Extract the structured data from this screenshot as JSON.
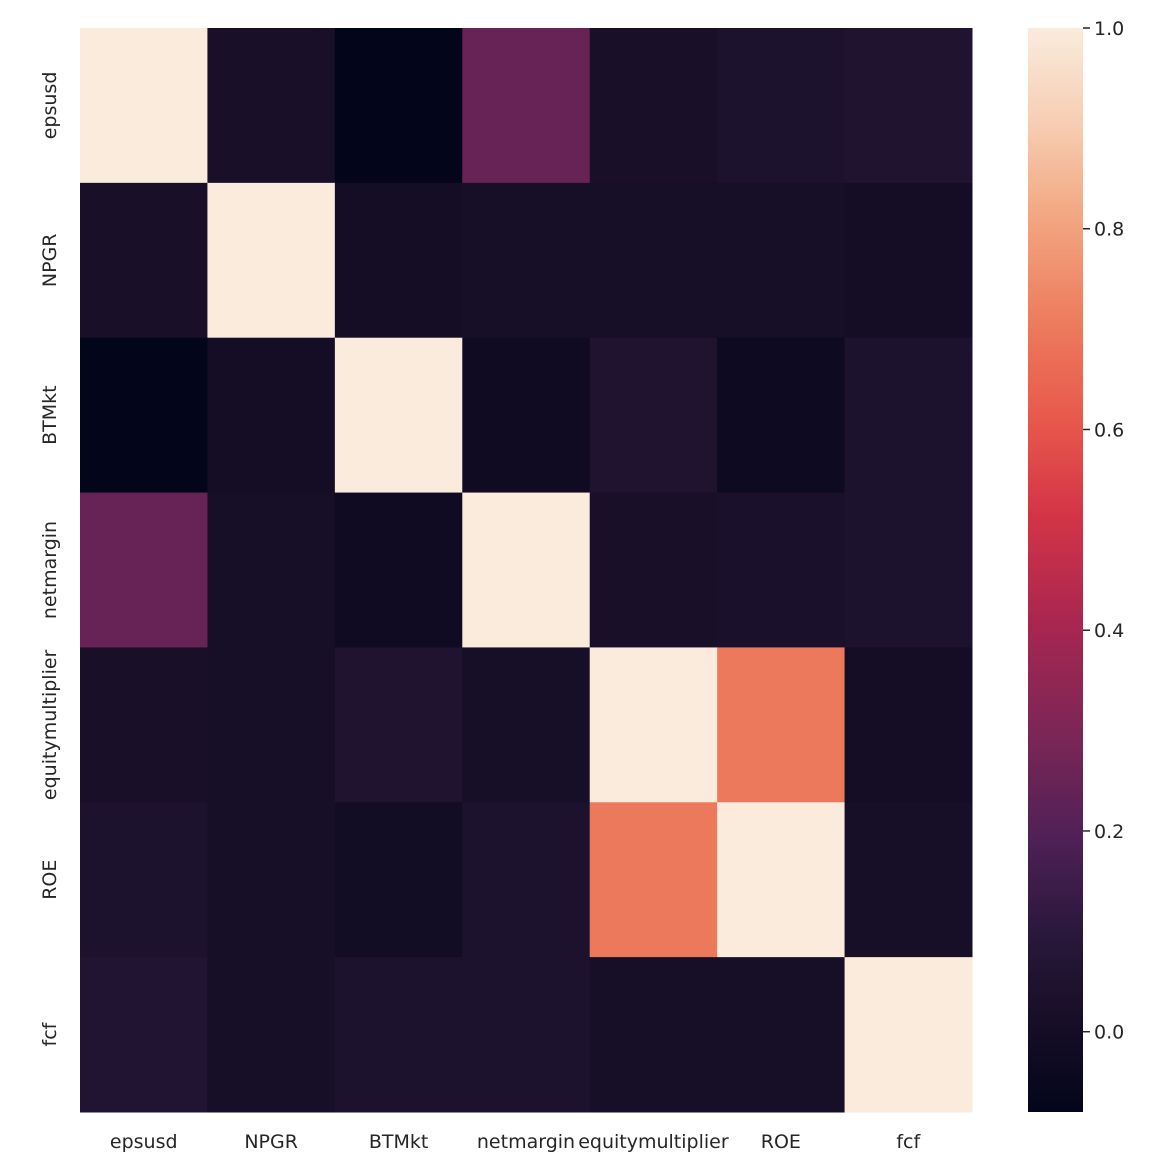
{
  "chart_data": {
    "type": "heatmap",
    "title": "",
    "xlabel": "",
    "ylabel": "",
    "x_categories": [
      "epsusd",
      "NPGR",
      "BTMkt",
      "netmargin",
      "equitymultiplier",
      "ROE",
      "fcf"
    ],
    "y_categories": [
      "epsusd",
      "NPGR",
      "BTMkt",
      "netmargin",
      "equitymultiplier",
      "ROE",
      "fcf"
    ],
    "values": [
      [
        1.0,
        0.02,
        -0.08,
        0.25,
        0.02,
        0.04,
        0.05
      ],
      [
        0.02,
        1.0,
        0.0,
        0.01,
        0.01,
        0.01,
        0.0
      ],
      [
        -0.08,
        0.0,
        1.0,
        -0.02,
        0.05,
        -0.03,
        0.04
      ],
      [
        0.25,
        0.01,
        -0.02,
        1.0,
        0.02,
        0.03,
        0.04
      ],
      [
        0.02,
        0.01,
        0.05,
        0.01,
        1.0,
        0.7,
        0.0
      ],
      [
        0.04,
        0.01,
        -0.01,
        0.04,
        0.7,
        1.0,
        0.01
      ],
      [
        0.06,
        0.01,
        0.04,
        0.04,
        0.01,
        0.01,
        1.0
      ]
    ],
    "colorbar": {
      "range": [
        -0.08,
        1.0
      ],
      "ticks": [
        0.0,
        0.2,
        0.4,
        0.6,
        0.8,
        1.0
      ],
      "tick_labels": [
        "0.0",
        "0.2",
        "0.4",
        "0.6",
        "0.8",
        "1.0"
      ],
      "colormap": "rocket"
    },
    "grid": false,
    "legend": "colorbar-right"
  }
}
